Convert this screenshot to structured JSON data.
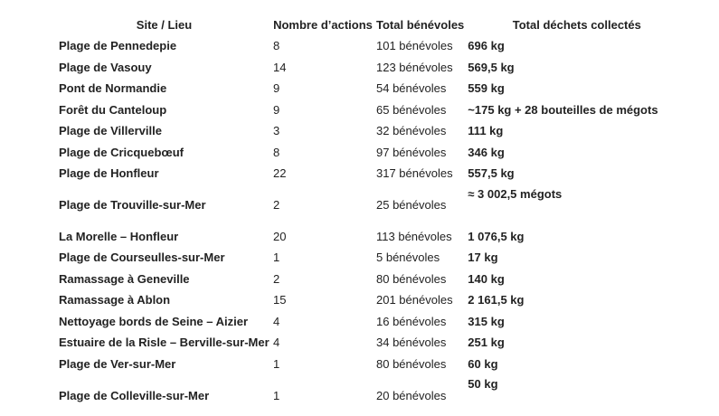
{
  "headers": {
    "site": "Site / Lieu",
    "actions": "Nombre d’actions",
    "volunteers": "Total bénévoles",
    "waste": "Total déchets collectés"
  },
  "rows": [
    {
      "site": "Plage de Pennedepie",
      "actions": "8",
      "volunteers": "101 bénévoles",
      "waste": "696 kg"
    },
    {
      "site": "Plage de Vasouy",
      "actions": "14",
      "volunteers": "123 bénévoles",
      "waste": "569,5 kg"
    },
    {
      "site": "Pont de Normandie",
      "actions": "9",
      "volunteers": "54 bénévoles",
      "waste": "559 kg"
    },
    {
      "site": "Forêt du Canteloup",
      "actions": "9",
      "volunteers": "65 bénévoles",
      "waste": "~175 kg + 28 bouteilles de mégots"
    },
    {
      "site": "Plage de Villerville",
      "actions": "3",
      "volunteers": "32 bénévoles",
      "waste": "111 kg"
    },
    {
      "site": "Plage de Cricquebœuf",
      "actions": "8",
      "volunteers": "97 bénévoles",
      "waste": "346 kg"
    },
    {
      "site": "Plage de Honfleur",
      "actions": "22",
      "volunteers": "317 bénévoles",
      "waste": "557,5 kg"
    },
    {
      "site": "Plage de Trouville-sur-Mer",
      "actions": "2",
      "volunteers": "25 bénévoles",
      "waste": "≈ 3 002,5 mégots"
    },
    {
      "site": "La Morelle – Honfleur",
      "actions": "20",
      "volunteers": "113 bénévoles",
      "waste": "1 076,5 kg"
    },
    {
      "site": "Plage de Courseulles-sur-Mer",
      "actions": "1",
      "volunteers": "5 bénévoles",
      "waste": "17 kg"
    },
    {
      "site": "Ramassage à Geneville",
      "actions": "2",
      "volunteers": "80 bénévoles",
      "waste": "140 kg"
    },
    {
      "site": "Ramassage à Ablon",
      "actions": "15",
      "volunteers": "201 bénévoles",
      "waste": "2 161,5 kg"
    },
    {
      "site": "Nettoyage bords de Seine – Aizier",
      "actions": "4",
      "volunteers": "16 bénévoles",
      "waste": "315 kg"
    },
    {
      "site": "Estuaire de la Risle – Berville-sur-Mer",
      "actions": "4",
      "volunteers": "34 bénévoles",
      "waste": "251 kg"
    },
    {
      "site": "Plage de Ver-sur-Mer",
      "actions": "1",
      "volunteers": "80 bénévoles",
      "waste": "60 kg"
    },
    {
      "site": "Plage de Colleville-sur-Mer",
      "actions": "1",
      "volunteers": "20 bénévoles",
      "waste": "50 kg"
    }
  ]
}
